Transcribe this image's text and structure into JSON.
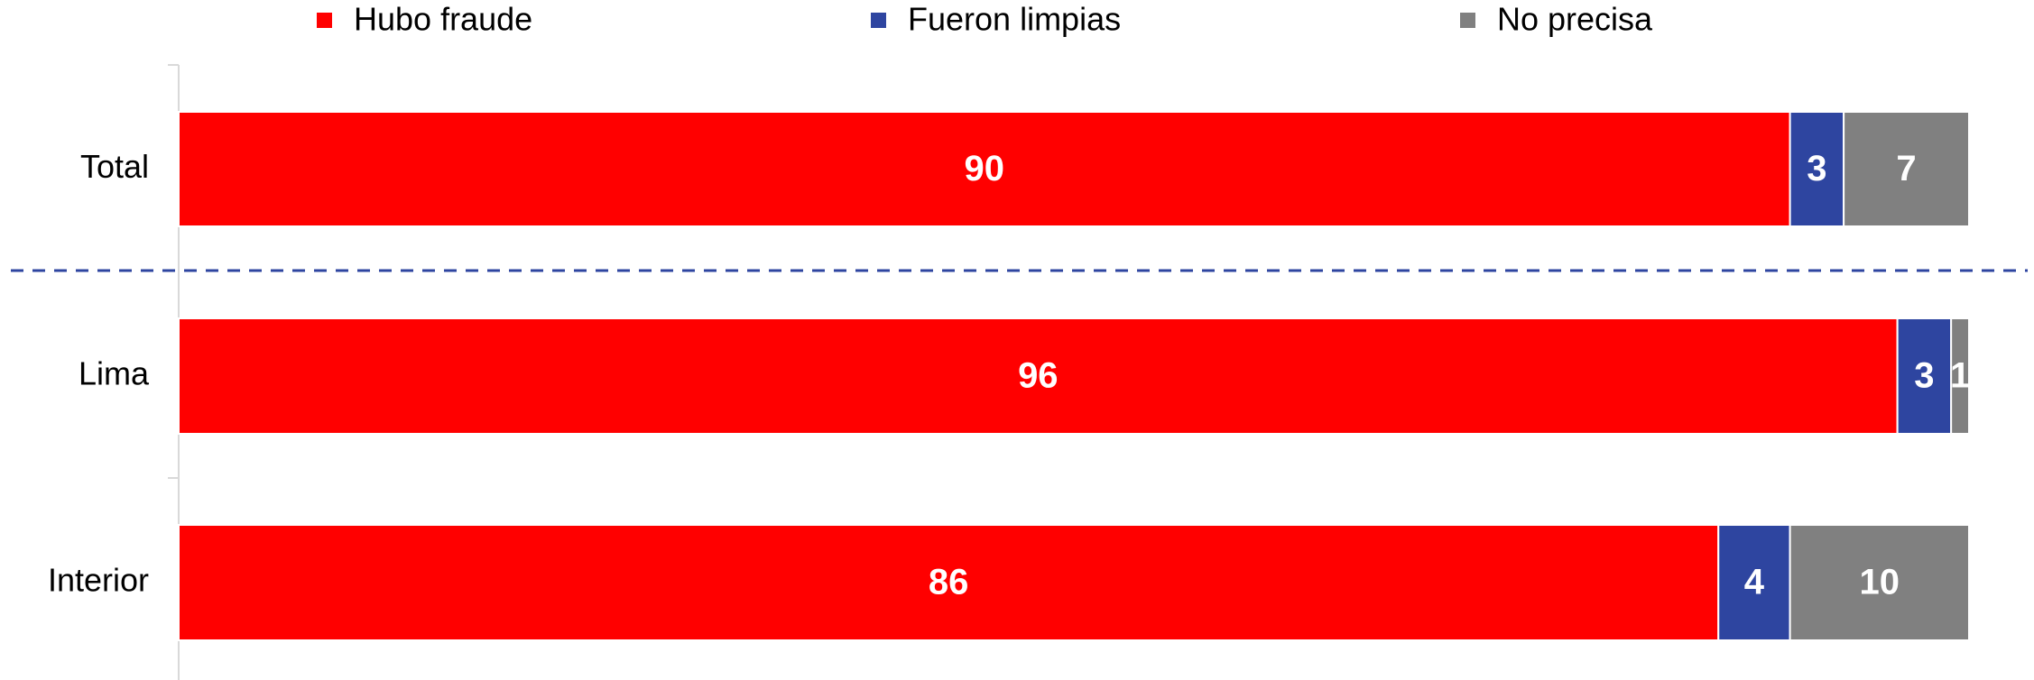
{
  "chart_data": {
    "type": "stacked_bar_horizontal",
    "categories": [
      "Total",
      "Lima",
      "Interior"
    ],
    "series": [
      {
        "name": "Hubo fraude",
        "color": "#ff0000",
        "values": [
          90,
          96,
          86
        ]
      },
      {
        "name": "Fueron limpias",
        "color": "#2e45a0",
        "values": [
          3,
          3,
          4
        ]
      },
      {
        "name": "No precisa",
        "color": "#808080",
        "values": [
          7,
          1,
          10
        ]
      }
    ],
    "xlim": [
      0,
      100
    ]
  }
}
